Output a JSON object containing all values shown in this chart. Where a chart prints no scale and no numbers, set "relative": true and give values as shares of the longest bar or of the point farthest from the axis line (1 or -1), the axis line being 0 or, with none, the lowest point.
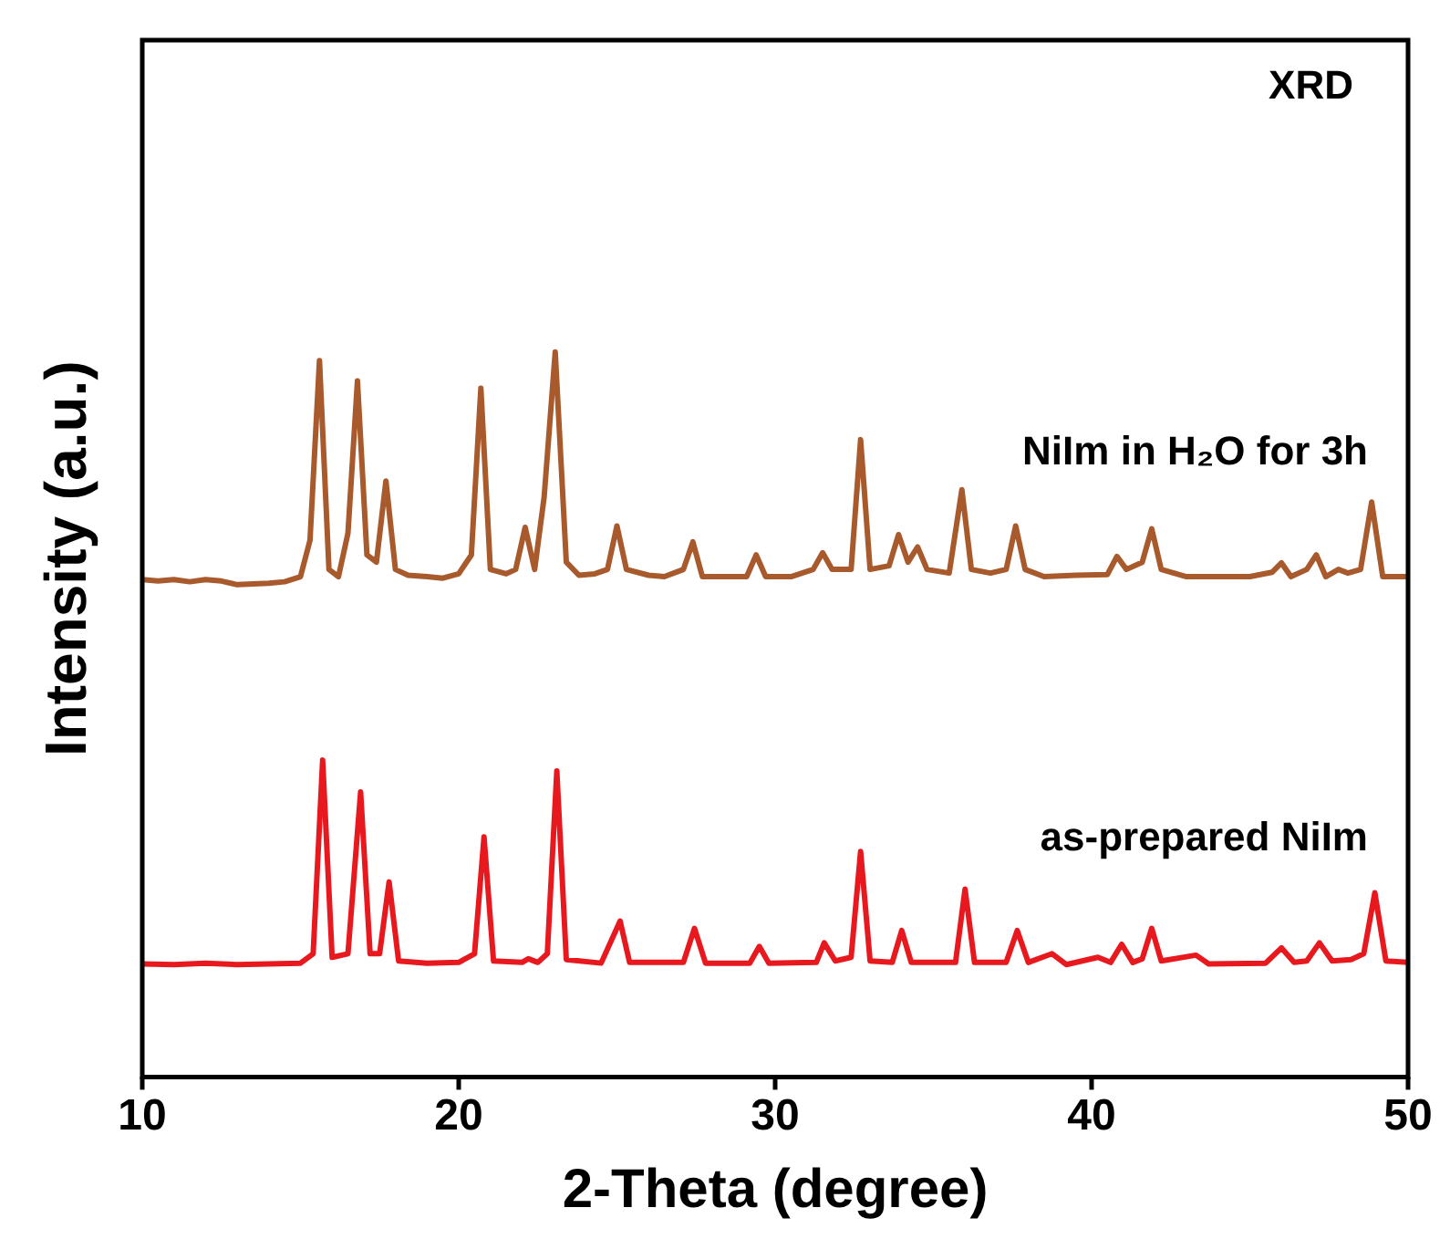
{
  "chart_data": {
    "type": "line",
    "xlabel": "2-Theta (degree)",
    "ylabel": "Intensity (a.u.)",
    "relative": true,
    "xlim": [
      10,
      50
    ],
    "xticks": [
      10,
      20,
      30,
      40,
      50
    ],
    "grid": false,
    "legend": false,
    "marker": "none",
    "line_style": "solid",
    "annotations": [
      "XRD"
    ],
    "series": [
      {
        "name": "NiIm in H₂O for 3h",
        "color": "#a85a2c",
        "x": [
          10,
          10.5,
          11,
          11.5,
          12,
          12.5,
          13,
          13.5,
          14,
          14.5,
          15,
          15.3,
          15.6,
          15.9,
          16.2,
          16.5,
          16.8,
          17.1,
          17.4,
          17.7,
          18.0,
          18.4,
          19,
          19.5,
          20,
          20.4,
          20.7,
          21.0,
          21.5,
          21.8,
          22.1,
          22.4,
          22.7,
          23.05,
          23.4,
          23.8,
          24.3,
          24.7,
          25.0,
          25.3,
          26,
          26.5,
          27.1,
          27.4,
          27.7,
          28.5,
          29.1,
          29.4,
          29.7,
          30.5,
          31.2,
          31.5,
          31.8,
          32.4,
          32.7,
          33.0,
          33.6,
          33.9,
          34.2,
          34.5,
          34.8,
          35.5,
          35.9,
          36.2,
          36.8,
          37.3,
          37.6,
          37.9,
          38.5,
          39.5,
          40.5,
          40.8,
          41.1,
          41.6,
          41.9,
          42.2,
          43,
          44,
          45,
          45.7,
          46.0,
          46.3,
          46.8,
          47.1,
          47.4,
          47.8,
          48.1,
          48.5,
          48.85,
          49.2,
          49.6,
          50
        ],
        "values": [
          0.686,
          0.684,
          0.686,
          0.683,
          0.686,
          0.684,
          0.679,
          0.68,
          0.681,
          0.683,
          0.69,
          0.74,
          0.988,
          0.7,
          0.69,
          0.75,
          0.96,
          0.72,
          0.71,
          0.822,
          0.7,
          0.692,
          0.69,
          0.688,
          0.694,
          0.72,
          0.95,
          0.7,
          0.694,
          0.7,
          0.758,
          0.7,
          0.8,
          1,
          0.71,
          0.692,
          0.694,
          0.7,
          0.76,
          0.7,
          0.692,
          0.69,
          0.7,
          0.738,
          0.69,
          0.69,
          0.69,
          0.72,
          0.69,
          0.69,
          0.7,
          0.723,
          0.7,
          0.7,
          0.879,
          0.7,
          0.705,
          0.748,
          0.71,
          0.731,
          0.7,
          0.695,
          0.81,
          0.7,
          0.695,
          0.7,
          0.76,
          0.7,
          0.69,
          0.692,
          0.693,
          0.718,
          0.7,
          0.71,
          0.756,
          0.7,
          0.69,
          0.69,
          0.69,
          0.696,
          0.709,
          0.69,
          0.7,
          0.72,
          0.69,
          0.7,
          0.695,
          0.7,
          0.793,
          0.69,
          0.69,
          0.69
        ]
      },
      {
        "name": "as-prepared NiIm",
        "color": "#e8191e",
        "x": [
          10,
          11,
          12,
          13,
          14,
          15,
          15.4,
          15.7,
          16.0,
          16.5,
          16.9,
          17.2,
          17.5,
          17.8,
          18.1,
          19,
          20,
          20.5,
          20.8,
          21.1,
          22,
          22.2,
          22.5,
          22.8,
          23.1,
          23.4,
          24.5,
          25.1,
          25.4,
          27.1,
          27.45,
          27.8,
          29.2,
          29.5,
          29.8,
          31.3,
          31.55,
          31.9,
          32.4,
          32.7,
          33.0,
          33.7,
          34.0,
          34.3,
          35.7,
          36.0,
          36.3,
          37.3,
          37.65,
          38.0,
          38.75,
          39.2,
          40.2,
          40.6,
          40.95,
          41.3,
          41.6,
          41.9,
          42.2,
          43.3,
          43.7,
          45.5,
          46.0,
          46.4,
          46.8,
          47.2,
          47.6,
          48.2,
          48.6,
          48.95,
          49.3,
          50
        ],
        "values": [
          0.156,
          0.155,
          0.157,
          0.155,
          0.156,
          0.157,
          0.17,
          0.437,
          0.165,
          0.17,
          0.393,
          0.17,
          0.17,
          0.269,
          0.16,
          0.157,
          0.158,
          0.17,
          0.331,
          0.16,
          0.158,
          0.163,
          0.158,
          0.17,
          0.422,
          0.162,
          0.157,
          0.215,
          0.158,
          0.158,
          0.205,
          0.157,
          0.157,
          0.18,
          0.157,
          0.158,
          0.185,
          0.16,
          0.165,
          0.311,
          0.16,
          0.158,
          0.202,
          0.158,
          0.158,
          0.259,
          0.158,
          0.158,
          0.202,
          0.158,
          0.17,
          0.155,
          0.165,
          0.158,
          0.183,
          0.158,
          0.163,
          0.205,
          0.16,
          0.168,
          0.156,
          0.157,
          0.178,
          0.158,
          0.16,
          0.185,
          0.16,
          0.162,
          0.17,
          0.254,
          0.16,
          0.158
        ]
      }
    ]
  }
}
